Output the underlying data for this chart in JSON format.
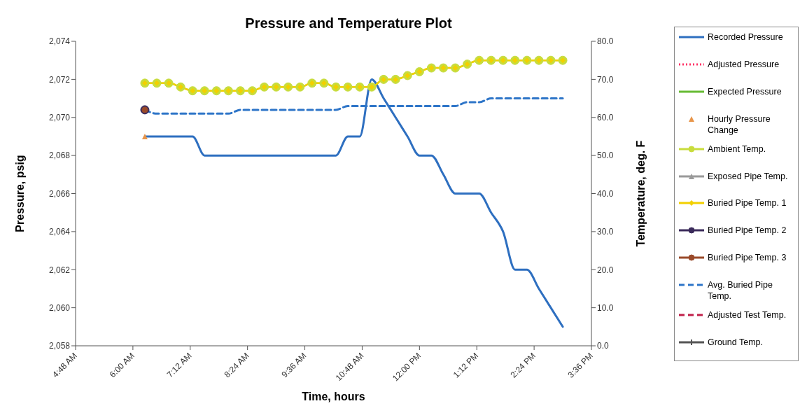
{
  "chart_data": {
    "type": "line",
    "title": "Pressure and Temperature Plot",
    "xlabel": "Time, hours",
    "ylabel": "Pressure, psig",
    "y2label": "Temperature, deg. F",
    "x": [
      6.25,
      6.5,
      6.75,
      7.0,
      7.25,
      7.5,
      7.75,
      8.0,
      8.25,
      8.5,
      8.75,
      9.0,
      9.25,
      9.5,
      9.75,
      10.0,
      10.25,
      10.5,
      10.75,
      11.0,
      11.25,
      11.5,
      11.75,
      12.0,
      12.25,
      12.5,
      12.75,
      13.0,
      13.25,
      13.5,
      13.75,
      14.0,
      14.25,
      14.5,
      14.75,
      15.0
    ],
    "xlim": [
      4.8,
      15.6
    ],
    "xticks": [
      {
        "value": 4.8,
        "label": "4:48 AM"
      },
      {
        "value": 6.0,
        "label": "6:00 AM"
      },
      {
        "value": 7.2,
        "label": "7:12 AM"
      },
      {
        "value": 8.4,
        "label": "8:24 AM"
      },
      {
        "value": 9.6,
        "label": "9:36 AM"
      },
      {
        "value": 10.8,
        "label": "10:48 AM"
      },
      {
        "value": 12.0,
        "label": "12:00 PM"
      },
      {
        "value": 13.2,
        "label": "1:12 PM"
      },
      {
        "value": 14.4,
        "label": "2:24 PM"
      },
      {
        "value": 15.6,
        "label": "3:36 PM"
      }
    ],
    "ylim": [
      2058,
      2074
    ],
    "yticks": [
      {
        "value": 2058,
        "label": "2,058"
      },
      {
        "value": 2060,
        "label": "2,060"
      },
      {
        "value": 2062,
        "label": "2,062"
      },
      {
        "value": 2064,
        "label": "2,064"
      },
      {
        "value": 2066,
        "label": "2,066"
      },
      {
        "value": 2068,
        "label": "2,068"
      },
      {
        "value": 2070,
        "label": "2,070"
      },
      {
        "value": 2072,
        "label": "2,072"
      },
      {
        "value": 2074,
        "label": "2,074"
      }
    ],
    "y2lim": [
      0,
      80
    ],
    "y2ticks": [
      {
        "value": 0,
        "label": "0.0"
      },
      {
        "value": 10,
        "label": "10.0"
      },
      {
        "value": 20,
        "label": "20.0"
      },
      {
        "value": 30,
        "label": "30.0"
      },
      {
        "value": 40,
        "label": "40.0"
      },
      {
        "value": 50,
        "label": "50.0"
      },
      {
        "value": 60,
        "label": "60.0"
      },
      {
        "value": 70,
        "label": "70.0"
      },
      {
        "value": 80,
        "label": "80.0"
      }
    ],
    "grid": false,
    "legend": "right",
    "series": [
      {
        "name": "Recorded Pressure",
        "color": "#2e6fc0",
        "line_style": "solid",
        "marker": "none",
        "values": [
          2069,
          2069,
          2069,
          2069,
          2069,
          2068,
          2068,
          2068,
          2068,
          2068,
          2068,
          2068,
          2068,
          2068,
          2068,
          2068,
          2068,
          2069,
          2069,
          2072,
          2071,
          2070,
          2069,
          2068,
          2068,
          2067,
          2066,
          2066,
          2066,
          2065,
          2064,
          2062,
          2062,
          2061,
          2060,
          2059
        ]
      },
      {
        "name": "Adjusted Pressure",
        "color": "#ff3366",
        "line_style": "dotted",
        "marker": "none",
        "values": [
          null,
          null,
          null,
          null,
          null,
          null,
          null,
          null,
          null,
          null,
          null,
          null,
          null,
          null,
          null,
          null,
          null,
          null,
          null,
          null,
          null,
          null,
          null,
          null,
          null,
          null,
          null,
          null,
          null,
          null,
          null,
          null,
          null,
          null,
          null,
          null
        ]
      },
      {
        "name": "Expected Pressure",
        "color": "#66bb33",
        "line_style": "solid",
        "marker": "none",
        "values": [
          null,
          null,
          null,
          null,
          null,
          null,
          null,
          null,
          null,
          null,
          null,
          null,
          null,
          null,
          null,
          null,
          null,
          null,
          null,
          null,
          null,
          null,
          null,
          null,
          null,
          null,
          null,
          null,
          null,
          null,
          null,
          null,
          null,
          null,
          null,
          null
        ]
      },
      {
        "name": "Hourly Pressure Change",
        "type": "scatter",
        "color": "#e8954a",
        "marker": "triangle",
        "values": [
          2069,
          null,
          null,
          null,
          null,
          null,
          null,
          null,
          null,
          null,
          null,
          null,
          null,
          null,
          null,
          null,
          null,
          null,
          null,
          null,
          null,
          null,
          null,
          null,
          null,
          null,
          null,
          null,
          null,
          null,
          null,
          null,
          null,
          null,
          null,
          null
        ]
      },
      {
        "name": "Ambient Temp.",
        "axis": "y2",
        "color": "#c8dc3c",
        "line_style": "solid",
        "marker": "circle",
        "values": [
          69,
          69,
          69,
          68,
          67,
          67,
          67,
          67,
          67,
          67,
          68,
          68,
          68,
          68,
          69,
          69,
          68,
          68,
          68,
          68,
          70,
          70,
          71,
          72,
          73,
          73,
          73,
          74,
          75,
          75,
          75,
          75,
          75,
          75,
          75,
          75
        ]
      },
      {
        "name": "Exposed Pipe Temp.",
        "axis": "y2",
        "color": "#9a9a9a",
        "line_style": "solid",
        "marker": "triangle",
        "values": [
          null,
          null,
          null,
          null,
          null,
          null,
          null,
          null,
          null,
          null,
          null,
          null,
          null,
          null,
          null,
          null,
          null,
          null,
          null,
          null,
          null,
          null,
          null,
          null,
          null,
          null,
          null,
          null,
          null,
          null,
          null,
          null,
          null,
          null,
          null,
          null
        ]
      },
      {
        "name": "Buried Pipe Temp. 1",
        "axis": "y2",
        "color": "#f2d000",
        "line_style": "solid",
        "marker": "diamond",
        "values": [
          69,
          69,
          69,
          68,
          67,
          67,
          67,
          67,
          67,
          67,
          68,
          68,
          68,
          68,
          69,
          69,
          68,
          68,
          68,
          68,
          70,
          70,
          71,
          72,
          73,
          73,
          73,
          74,
          75,
          75,
          75,
          75,
          75,
          75,
          75,
          75
        ]
      },
      {
        "name": "Buried Pipe Temp. 2",
        "axis": "y2",
        "color": "#3a2a5a",
        "line_style": "solid",
        "marker": "circle",
        "values": [
          62,
          null,
          null,
          null,
          null,
          null,
          null,
          null,
          null,
          null,
          null,
          null,
          null,
          null,
          null,
          null,
          null,
          null,
          null,
          null,
          null,
          null,
          null,
          null,
          null,
          null,
          null,
          null,
          null,
          null,
          null,
          null,
          null,
          null,
          null,
          null
        ]
      },
      {
        "name": "Buried Pipe Temp. 3",
        "axis": "y2",
        "color": "#9a4a2a",
        "line_style": "solid",
        "marker": "circle",
        "values": [
          62,
          null,
          null,
          null,
          null,
          null,
          null,
          null,
          null,
          null,
          null,
          null,
          null,
          null,
          null,
          null,
          null,
          null,
          null,
          null,
          null,
          null,
          null,
          null,
          null,
          null,
          null,
          null,
          null,
          null,
          null,
          null,
          null,
          null,
          null,
          null
        ]
      },
      {
        "name": "Avg. Buried Pipe Temp.",
        "axis": "y2",
        "color": "#2e75c8",
        "line_style": "dashed",
        "marker": "none",
        "values": [
          62,
          61,
          61,
          61,
          61,
          61,
          61,
          61,
          62,
          62,
          62,
          62,
          62,
          62,
          62,
          62,
          62,
          63,
          63,
          63,
          63,
          63,
          63,
          63,
          63,
          63,
          63,
          64,
          64,
          65,
          65,
          65,
          65,
          65,
          65,
          65
        ]
      },
      {
        "name": "Adjusted Test Temp.",
        "axis": "y2",
        "color": "#c0204a",
        "line_style": "dashed",
        "marker": "none",
        "values": [
          null,
          null,
          null,
          null,
          null,
          null,
          null,
          null,
          null,
          null,
          null,
          null,
          null,
          null,
          null,
          null,
          null,
          null,
          null,
          null,
          null,
          null,
          null,
          null,
          null,
          null,
          null,
          null,
          null,
          null,
          null,
          null,
          null,
          null,
          null,
          null
        ]
      },
      {
        "name": "Ground Temp.",
        "axis": "y2",
        "color": "#555555",
        "line_style": "solid",
        "marker": "cross",
        "values": [
          null,
          null,
          null,
          null,
          null,
          null,
          null,
          null,
          null,
          null,
          null,
          null,
          null,
          null,
          null,
          null,
          null,
          null,
          null,
          null,
          null,
          null,
          null,
          null,
          null,
          null,
          null,
          null,
          null,
          null,
          null,
          null,
          null,
          null,
          null,
          null
        ]
      }
    ]
  }
}
